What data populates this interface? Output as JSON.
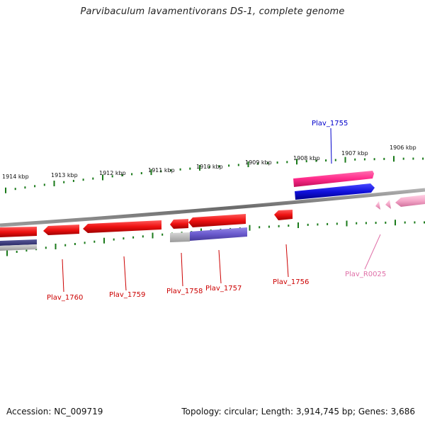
{
  "title": "Parvibaculum lavamentivorans DS-1, complete genome",
  "footer": {
    "accession": "Accession: NC_009719",
    "topology": "Topology: circular; Length: 3,914,745 bp; Genes: 3,686"
  },
  "colors": {
    "tick": "#1a7a1a",
    "backbone": "#7f7f7f",
    "cds_reverse": "#ee1111",
    "cds_forward": "#1111dd",
    "rna": "#ff2a8a",
    "misc_grey": "#b5b5b5",
    "purple": "#6a5acd",
    "light_pink": "#f4a6c8",
    "label_red": "#cc0000",
    "label_blue": "#0000cc",
    "label_pink": "#e070a8"
  },
  "kbp_ticks": [
    "1914 kbp",
    "1913 kbp",
    "1912 kbp",
    "1911 kbp",
    "1910 kbp",
    "1909 kbp",
    "1908 kbp",
    "1907 kbp",
    "1906 kbp"
  ],
  "gene_labels": {
    "plav_1755": "Plav_1755",
    "plav_1756": "Plav_1756",
    "plav_1757": "Plav_1757",
    "plav_1758": "Plav_1758",
    "plav_1759": "Plav_1759",
    "plav_1760": "Plav_1760",
    "plav_r0025": "Plav_R0025"
  }
}
